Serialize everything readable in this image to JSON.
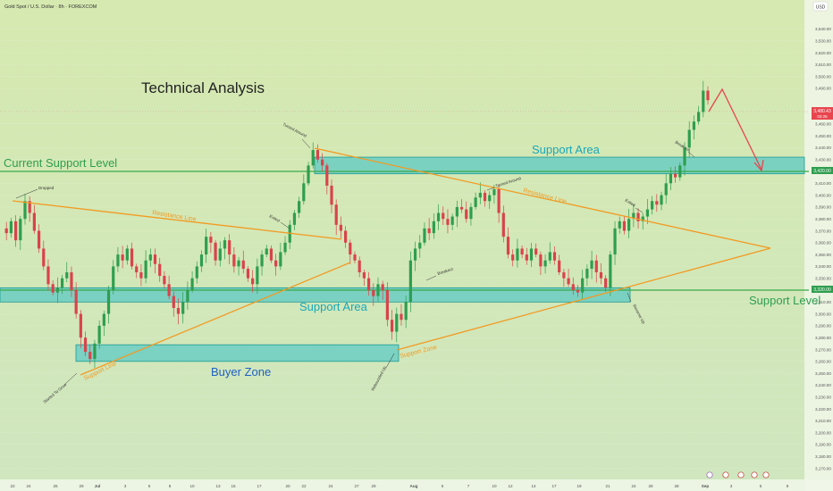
{
  "header": {
    "symbol_title": "Gold Spot / U.S. Dollar · 8h · FOREXCOM"
  },
  "currency_badge": "USD",
  "colors": {
    "background_top": "#d6e9b0",
    "background_bottom": "#cfe6bf",
    "up_candle": "#2e9e4f",
    "down_candle": "#d9434b",
    "zone_fill": "#5ec9c4",
    "zone_stroke": "#1c9a94",
    "trendline": "#f29a22",
    "support_level": "#3aa84a",
    "projection": "#e8454e",
    "annotation_blue": "#18a8b8",
    "axis_text": "#555555",
    "price_label": "#e8454e",
    "level_label": "#2e9e4f"
  },
  "annotations": {
    "title": "Technical Analysis",
    "current_support_level": "Current Support Level",
    "support_level": "Support Level",
    "support_area_top": "Support Area",
    "support_area_bottom": "Support Area",
    "buyer_zone": "Buyer Zone",
    "resistance_line_left": "Resistance Line",
    "resistance_line_right": "Resistance Line",
    "support_line": "Support Line",
    "support_zone": "Support Zone",
    "dropped": "Dropped",
    "started_to_grow": "Started To Grow",
    "exited_left": "Exited",
    "turned_around_top": "Turned Around",
    "turned_around_mid": "Turned Around",
    "breakout_mid": "Breakout",
    "rebounded_up": "Rebounded Up",
    "exited_right": "Exited",
    "breakout_right": "Breakout",
    "reverse_up": "Reverse Up"
  },
  "price_labels": {
    "current_price": "3,480.43",
    "current_sub": "03:26",
    "level_upper": "3,420.00",
    "level_lower": "3,320.00"
  },
  "chart_data": {
    "type": "candlestick",
    "title": "Gold Spot / U.S. Dollar · 8h · FOREXCOM",
    "ylabel": "USD",
    "ylim": [
      3155,
      3555
    ],
    "y_ticks": [
      3170,
      3180,
      3190,
      3200,
      3210,
      3220,
      3230,
      3240,
      3250,
      3260,
      3270,
      3280,
      3290,
      3300,
      3310,
      3330,
      3340,
      3350,
      3360,
      3370,
      3380,
      3390,
      3400,
      3410,
      3430,
      3440,
      3450,
      3460,
      3470,
      3490,
      3500,
      3510,
      3520,
      3530,
      3540
    ],
    "x_ticks": [
      "22",
      "24",
      "26",
      "29",
      "Jul",
      "3",
      "6",
      "8",
      "10",
      "13",
      "15",
      "17",
      "20",
      "22",
      "24",
      "27",
      "29",
      "Aug",
      "5",
      "7",
      "10",
      "12",
      "14",
      "17",
      "19",
      "21",
      "24",
      "26",
      "28",
      "Sep",
      "3",
      "5",
      "9"
    ],
    "key_levels": [
      {
        "name": "Current Support Level",
        "price": 3420
      },
      {
        "name": "Support Level",
        "price": 3320
      }
    ],
    "zones": [
      {
        "name": "Support Area",
        "from_date": "Jun 22",
        "to_date": "Aug 22",
        "low": 3310,
        "high": 3322
      },
      {
        "name": "Support Area",
        "from_date": "Jul 23",
        "to_date": "Sep 3",
        "low": 3418,
        "high": 3432
      },
      {
        "name": "Buyer Zone",
        "from_date": "Jun 28",
        "to_date": "Jul 30",
        "low": 3260,
        "high": 3274
      }
    ],
    "trendlines": [
      {
        "name": "Resistance Line",
        "from": [
          "Jun 22",
          3398
        ],
        "to": [
          "Jul 22",
          3362
        ]
      },
      {
        "name": "Support Line",
        "from": [
          "Jun 28",
          3250
        ],
        "to": [
          "Jul 24",
          3348
        ]
      },
      {
        "name": "Resistance Line",
        "from": [
          "Jul 23",
          3440
        ],
        "to": [
          "Sep 7",
          3355
        ]
      },
      {
        "name": "Support Zone",
        "from": [
          "Jul 30",
          3270
        ],
        "to": [
          "Sep 7",
          3355
        ]
      }
    ],
    "projection": {
      "from": [
        "Sep 1",
        3482
      ],
      "peak": [
        "Sep 2",
        3494
      ],
      "target": [
        "Sep 5",
        3420
      ]
    },
    "close_path": [
      [
        "Jun 19",
        3372
      ],
      [
        "Jun 20",
        3368
      ],
      [
        "Jun 20",
        3378
      ],
      [
        "Jun 21",
        3362
      ],
      [
        "Jun 21",
        3380
      ],
      [
        "Jun 22",
        3395
      ],
      [
        "Jun 22",
        3385
      ],
      [
        "Jun 23",
        3370
      ],
      [
        "Jun 23",
        3355
      ],
      [
        "Jun 24",
        3340
      ],
      [
        "Jun 24",
        3325
      ],
      [
        "Jun 25",
        3318
      ],
      [
        "Jun 25",
        3322
      ],
      [
        "Jun 26",
        3330
      ],
      [
        "Jun 26",
        3335
      ],
      [
        "Jun 27",
        3320
      ],
      [
        "Jun 27",
        3300
      ],
      [
        "Jun 28",
        3280
      ],
      [
        "Jun 28",
        3268
      ],
      [
        "Jun 29",
        3262
      ],
      [
        "Jun 29",
        3275
      ],
      [
        "Jun 30",
        3290
      ],
      [
        "Jun 30",
        3300
      ],
      [
        "Jul 1",
        3320
      ],
      [
        "Jul 1",
        3340
      ],
      [
        "Jul 2",
        3350
      ],
      [
        "Jul 2",
        3345
      ],
      [
        "Jul 3",
        3355
      ],
      [
        "Jul 3",
        3340
      ],
      [
        "Jul 4",
        3335
      ],
      [
        "Jul 4",
        3330
      ],
      [
        "Jul 5",
        3345
      ],
      [
        "Jul 5",
        3350
      ],
      [
        "Jul 6",
        3342
      ],
      [
        "Jul 6",
        3332
      ],
      [
        "Jul 7",
        3325
      ],
      [
        "Jul 7",
        3315
      ],
      [
        "Jul 8",
        3305
      ],
      [
        "Jul 8",
        3300
      ],
      [
        "Jul 9",
        3310
      ],
      [
        "Jul 9",
        3320
      ],
      [
        "Jul 10",
        3330
      ],
      [
        "Jul 10",
        3340
      ],
      [
        "Jul 11",
        3350
      ],
      [
        "Jul 11",
        3365
      ],
      [
        "Jul 12",
        3360
      ],
      [
        "Jul 12",
        3345
      ],
      [
        "Jul 13",
        3355
      ],
      [
        "Jul 13",
        3362
      ],
      [
        "Jul 14",
        3350
      ],
      [
        "Jul 14",
        3340
      ],
      [
        "Jul 15",
        3345
      ],
      [
        "Jul 15",
        3338
      ],
      [
        "Jul 16",
        3330
      ],
      [
        "Jul 16",
        3325
      ],
      [
        "Jul 17",
        3340
      ],
      [
        "Jul 17",
        3350
      ],
      [
        "Jul 18",
        3355
      ],
      [
        "Jul 18",
        3345
      ],
      [
        "Jul 19",
        3340
      ],
      [
        "Jul 19",
        3352
      ],
      [
        "Jul 20",
        3360
      ],
      [
        "Jul 20",
        3375
      ],
      [
        "Jul 21",
        3385
      ],
      [
        "Jul 21",
        3395
      ],
      [
        "Jul 22",
        3410
      ],
      [
        "Jul 22",
        3425
      ],
      [
        "Jul 23",
        3438
      ],
      [
        "Jul 23",
        3430
      ],
      [
        "Jul 23",
        3425
      ],
      [
        "Jul 24",
        3408
      ],
      [
        "Jul 24",
        3392
      ],
      [
        "Jul 25",
        3375
      ],
      [
        "Jul 25",
        3370
      ],
      [
        "Jul 26",
        3360
      ],
      [
        "Jul 26",
        3350
      ],
      [
        "Jul 27",
        3345
      ],
      [
        "Jul 27",
        3335
      ],
      [
        "Jul 28",
        3330
      ],
      [
        "Jul 28",
        3320
      ],
      [
        "Jul 29",
        3315
      ],
      [
        "Jul 29",
        3325
      ],
      [
        "Jul 30",
        3320
      ],
      [
        "Jul 30",
        3295
      ],
      [
        "Jul 31",
        3285
      ],
      [
        "Jul 31",
        3300
      ],
      [
        "Aug 1",
        3295
      ],
      [
        "Aug 1",
        3310
      ],
      [
        "Aug 1",
        3345
      ],
      [
        "Aug 2",
        3355
      ],
      [
        "Aug 2",
        3360
      ],
      [
        "Aug 3",
        3372
      ],
      [
        "Aug 3",
        3368
      ],
      [
        "Aug 4",
        3378
      ],
      [
        "Aug 4",
        3385
      ],
      [
        "Aug 5",
        3380
      ],
      [
        "Aug 5",
        3375
      ],
      [
        "Aug 6",
        3382
      ],
      [
        "Aug 6",
        3390
      ],
      [
        "Aug 7",
        3388
      ],
      [
        "Aug 7",
        3380
      ],
      [
        "Aug 8",
        3390
      ],
      [
        "Aug 8",
        3398
      ],
      [
        "Aug 9",
        3402
      ],
      [
        "Aug 9",
        3395
      ],
      [
        "Aug 10",
        3400
      ],
      [
        "Aug 10",
        3405
      ],
      [
        "Aug 11",
        3385
      ],
      [
        "Aug 11",
        3365
      ],
      [
        "Aug 12",
        3350
      ],
      [
        "Aug 12",
        3345
      ],
      [
        "Aug 13",
        3355
      ],
      [
        "Aug 13",
        3350
      ],
      [
        "Aug 14",
        3345
      ],
      [
        "Aug 14",
        3355
      ],
      [
        "Aug 15",
        3350
      ],
      [
        "Aug 15",
        3340
      ],
      [
        "Aug 16",
        3345
      ],
      [
        "Aug 16",
        3352
      ],
      [
        "Aug 17",
        3345
      ],
      [
        "Aug 17",
        3335
      ],
      [
        "Aug 18",
        3330
      ],
      [
        "Aug 18",
        3325
      ],
      [
        "Aug 19",
        3320
      ],
      [
        "Aug 19",
        3318
      ],
      [
        "Aug 20",
        3330
      ],
      [
        "Aug 20",
        3338
      ],
      [
        "Aug 21",
        3345
      ],
      [
        "Aug 21",
        3335
      ],
      [
        "Aug 22",
        3330
      ],
      [
        "Aug 22",
        3322
      ],
      [
        "Aug 23",
        3350
      ],
      [
        "Aug 23",
        3372
      ],
      [
        "Aug 24",
        3378
      ],
      [
        "Aug 24",
        3370
      ],
      [
        "Aug 25",
        3380
      ],
      [
        "Aug 25",
        3385
      ],
      [
        "Aug 26",
        3378
      ],
      [
        "Aug 26",
        3382
      ],
      [
        "Aug 27",
        3388
      ],
      [
        "Aug 27",
        3395
      ],
      [
        "Aug 28",
        3392
      ],
      [
        "Aug 28",
        3400
      ],
      [
        "Aug 29",
        3410
      ],
      [
        "Aug 29",
        3418
      ],
      [
        "Aug 30",
        3415
      ],
      [
        "Aug 30",
        3425
      ],
      [
        "Aug 31",
        3440
      ],
      [
        "Aug 31",
        3455
      ],
      [
        "Sep 1",
        3462
      ],
      [
        "Sep 1",
        3470
      ],
      [
        "Sep 1",
        3488
      ],
      [
        "Sep 2",
        3480
      ]
    ]
  }
}
